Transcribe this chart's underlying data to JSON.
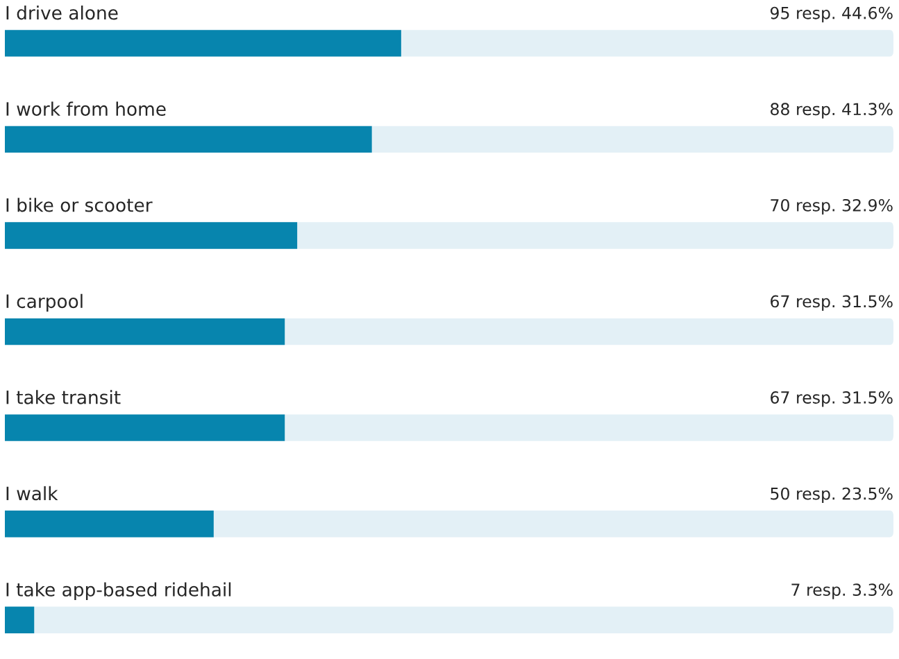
{
  "chart_data": {
    "type": "bar",
    "orientation": "horizontal",
    "categories": [
      "I drive alone",
      "I work from home",
      "I bike or scooter",
      "I carpool",
      "I take transit",
      "I walk",
      "I take app-based ridehail"
    ],
    "series": [
      {
        "color": "#0785ae",
        "values": [
          44.6,
          41.3,
          32.9,
          31.5,
          31.5,
          23.5,
          3.3
        ],
        "value_labels": [
          "95 resp. 44.6%",
          "88 resp. 41.3%",
          "70 resp. 32.9%",
          "67 resp. 31.5%",
          "67 resp. 31.5%",
          "50 resp. 23.5%",
          "7 resp. 3.3%"
        ]
      }
    ],
    "xlim": [
      0,
      100
    ],
    "tick_labels": false
  }
}
